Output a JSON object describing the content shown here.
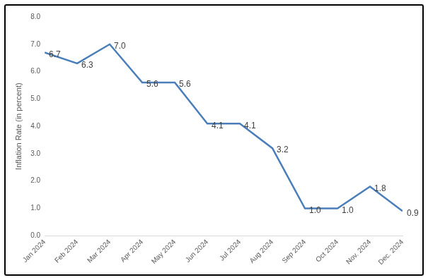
{
  "chart_data": {
    "type": "line",
    "y_label": "Inflation Rate (in percent)",
    "categories": [
      "Jan 2024",
      "Feb 2024",
      "Mar 2024",
      "Apr 2024",
      "May 2024",
      "Jun 2024",
      "Jul 2024",
      "Aug 2024",
      "Sep 2024",
      "Oct 2024",
      "Nov. 2024",
      "Dec. 2024"
    ],
    "values": [
      6.7,
      6.3,
      7.0,
      5.6,
      5.6,
      4.1,
      4.1,
      3.2,
      1.0,
      1.0,
      1.8,
      0.9
    ],
    "value_labels": [
      "6.7",
      "6.3",
      "7.0",
      "5.6",
      "5.6",
      "4.1",
      "4.1",
      "3.2",
      "1.0",
      "1.0",
      "1.8",
      "0.9"
    ],
    "color": "#4a7ebb",
    "ylim": [
      0,
      8
    ],
    "yticks": [
      {
        "value": 0,
        "label": "0.0"
      },
      {
        "value": 1,
        "label": "1.0"
      },
      {
        "value": 2,
        "label": "2.0"
      },
      {
        "value": 3,
        "label": "3.0"
      },
      {
        "value": 4,
        "label": "4.0"
      },
      {
        "value": 5,
        "label": "5.0"
      },
      {
        "value": 6,
        "label": "6.0"
      },
      {
        "value": 7,
        "label": "7.0"
      },
      {
        "value": 8,
        "label": "8.0"
      }
    ],
    "grid": false,
    "data_labels": true
  }
}
